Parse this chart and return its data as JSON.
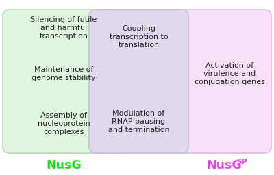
{
  "bg_color": "#ffffff",
  "left_box_color": "#dff5df",
  "middle_box_color": "#e0d8ec",
  "outer_box_color": "#f8e0f8",
  "left_box_edge": "#b8e0b8",
  "middle_box_edge": "#c8c0d8",
  "outer_box_edge": "#e0b8e0",
  "left_texts": [
    "Silencing of futile\nand harmful\ntranscription",
    "Maintenance of\ngenome stability",
    "Assembly of\nnucleoprotein\ncomplexes"
  ],
  "middle_texts": [
    "Coupling\ntranscription to\ntranslation",
    "Modulation of\nRNAP pausing\nand termination"
  ],
  "right_text": "Activation of\nvirulence and\nconjugation genes",
  "label_nusg": "NusG",
  "label_nusgsp_base": "NusG",
  "label_sp": "SP",
  "label_nusg_color": "#22dd22",
  "label_nusgsp_color": "#ee44ee",
  "text_color": "#222222",
  "font_size": 8.0,
  "label_font_size": 12.5
}
